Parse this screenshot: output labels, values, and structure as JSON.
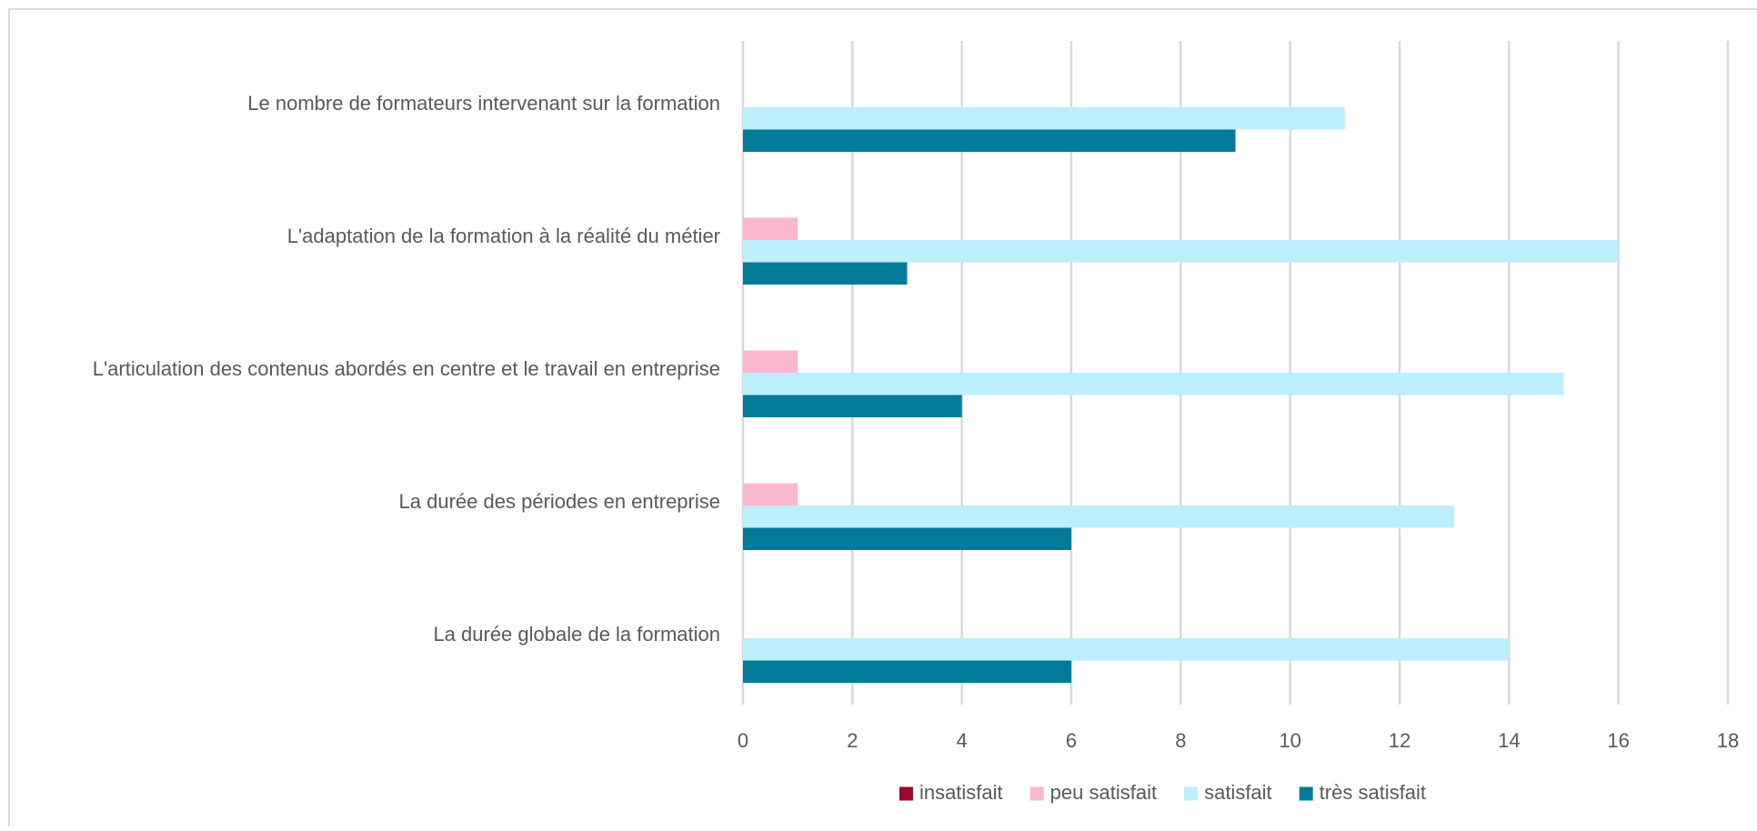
{
  "chart_data": {
    "type": "bar",
    "orientation": "horizontal",
    "categories": [
      "La durée globale de la formation",
      "La durée des périodes en entreprise",
      "L'articulation des contenus abordés en centre et le travail en entreprise",
      "L'adaptation de la formation à la réalité du métier",
      "Le nombre de formateurs intervenant sur la formation"
    ],
    "series": [
      {
        "name": "insatisfait",
        "color": "#9b0a33",
        "values": [
          0,
          0,
          0,
          0,
          0
        ]
      },
      {
        "name": "peu satisfait",
        "color": "#f9b8cc",
        "values": [
          0,
          1,
          1,
          1,
          0
        ]
      },
      {
        "name": "satisfait",
        "color": "#bdeefb",
        "values": [
          14,
          13,
          15,
          16,
          11
        ]
      },
      {
        "name": "très satisfait",
        "color": "#027a9a",
        "values": [
          6,
          6,
          4,
          3,
          9
        ]
      }
    ],
    "xlim": [
      0,
      18
    ],
    "xticks": [
      "0",
      "2",
      "4",
      "6",
      "8",
      "10",
      "12",
      "14",
      "16",
      "18"
    ],
    "grid": true,
    "legend_position": "bottom",
    "title": "",
    "xlabel": "",
    "ylabel": ""
  },
  "colors": {
    "grid": "#d9d9d9",
    "text": "#595959",
    "border": "#d9d9d9"
  }
}
